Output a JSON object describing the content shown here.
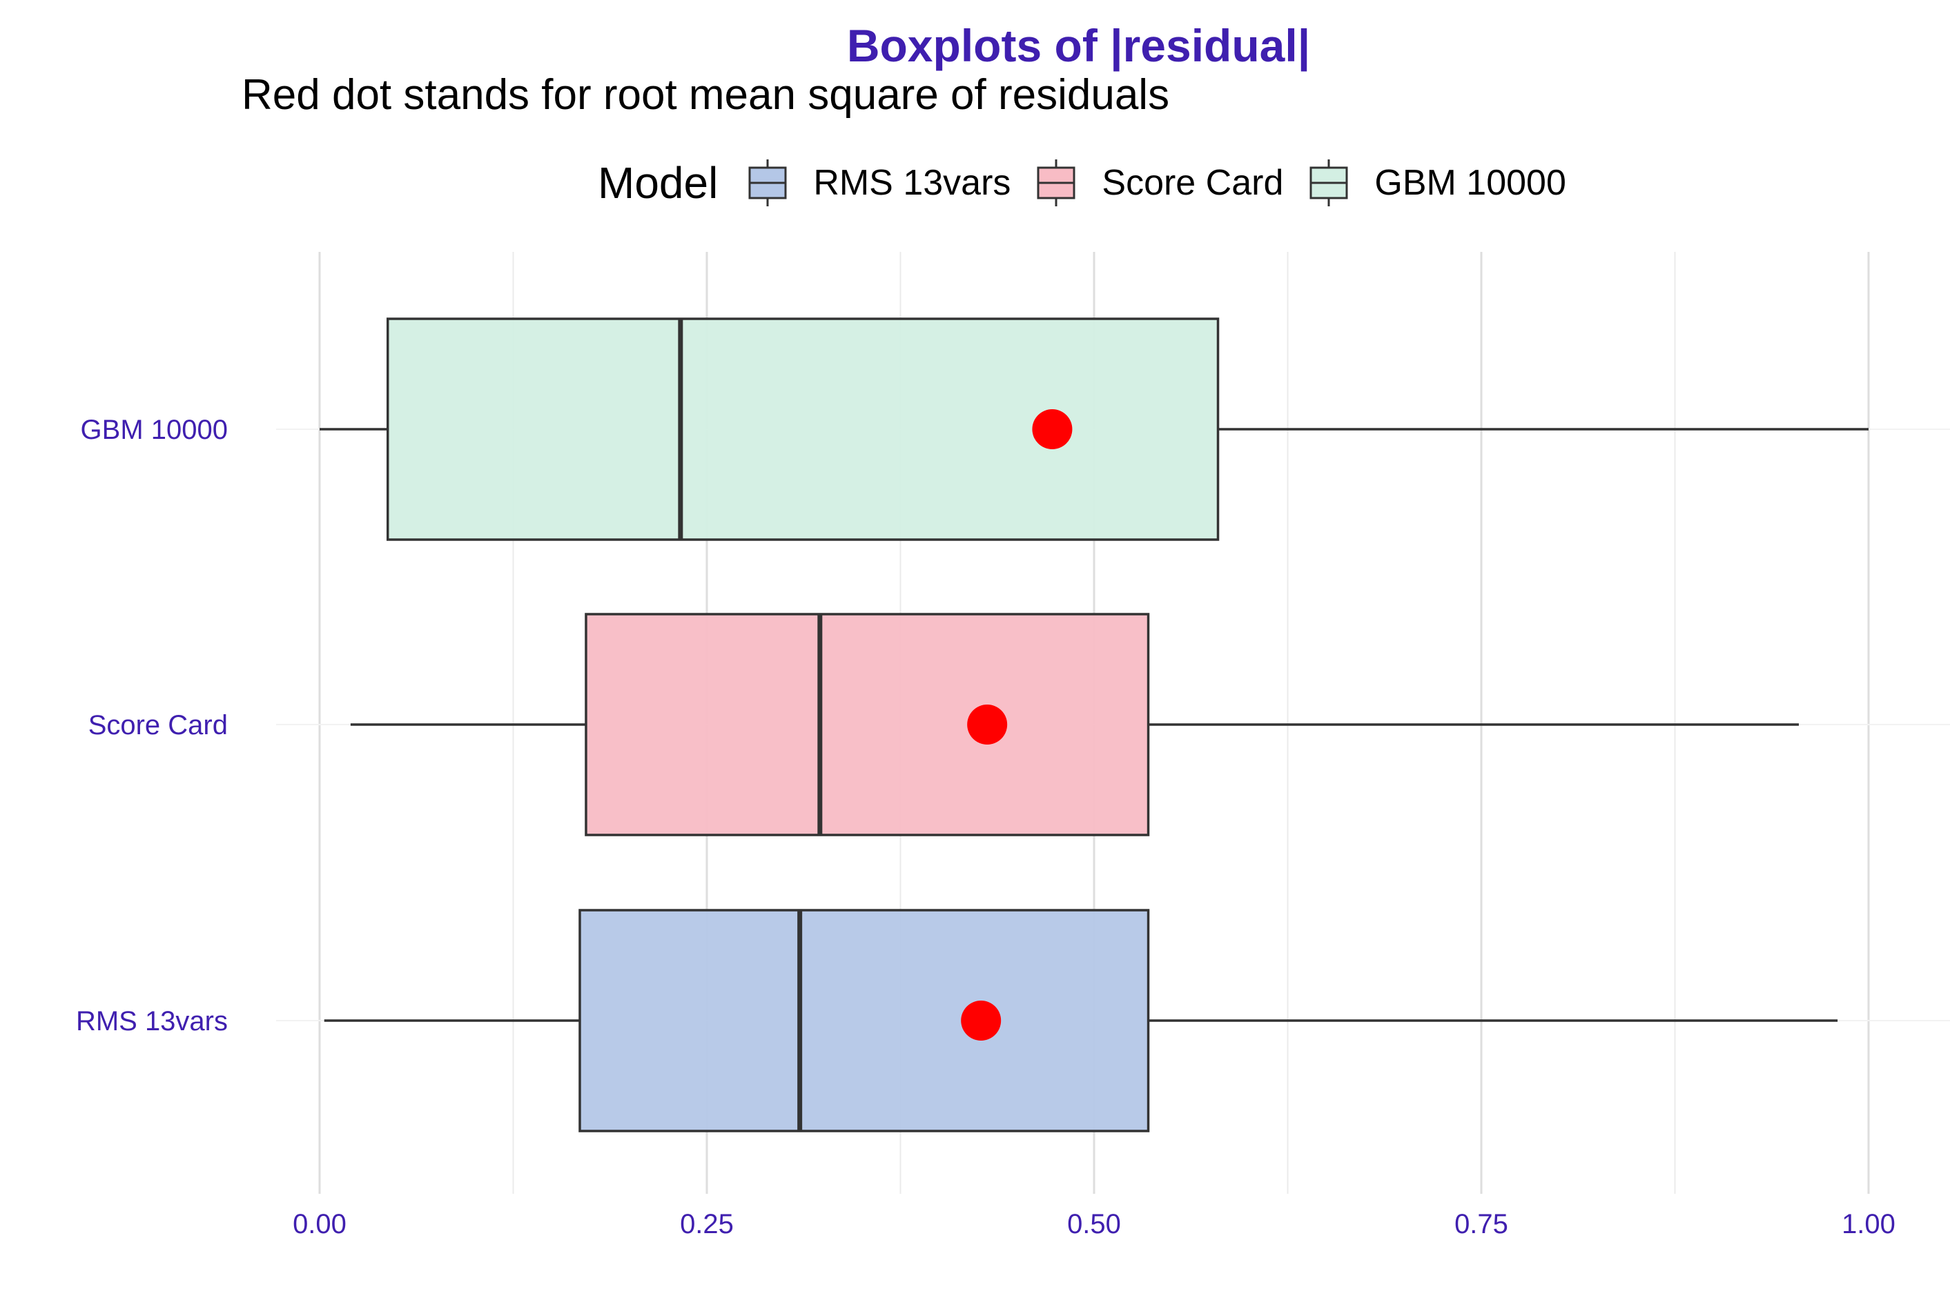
{
  "chart_data": {
    "type": "boxplot",
    "title": "Boxplots of |residual|",
    "subtitle": "Red dot stands for root mean square of residuals",
    "xlabel": "",
    "ylabel": "",
    "xlim": [
      0,
      1
    ],
    "x_ticks": [
      "0.00",
      "0.25",
      "0.50",
      "0.75",
      "1.00"
    ],
    "x_tick_values": [
      0,
      0.25,
      0.5,
      0.75,
      1.0
    ],
    "grid": true,
    "legend": {
      "title": "Model",
      "position": "top"
    },
    "mean_marker_color": "#FF0000",
    "series": [
      {
        "name": "RMS 13vars",
        "color": "#B4C7E7",
        "min": 0.003,
        "q1": 0.168,
        "median": 0.31,
        "q3": 0.535,
        "max": 0.98,
        "rms": 0.427
      },
      {
        "name": "Score Card",
        "color": "#F8BCC5",
        "min": 0.02,
        "q1": 0.172,
        "median": 0.323,
        "q3": 0.535,
        "max": 0.955,
        "rms": 0.431
      },
      {
        "name": "GBM 10000",
        "color": "#D3EFE3",
        "min": 0.0,
        "q1": 0.044,
        "median": 0.233,
        "q3": 0.58,
        "max": 1.0,
        "rms": 0.473
      }
    ]
  }
}
